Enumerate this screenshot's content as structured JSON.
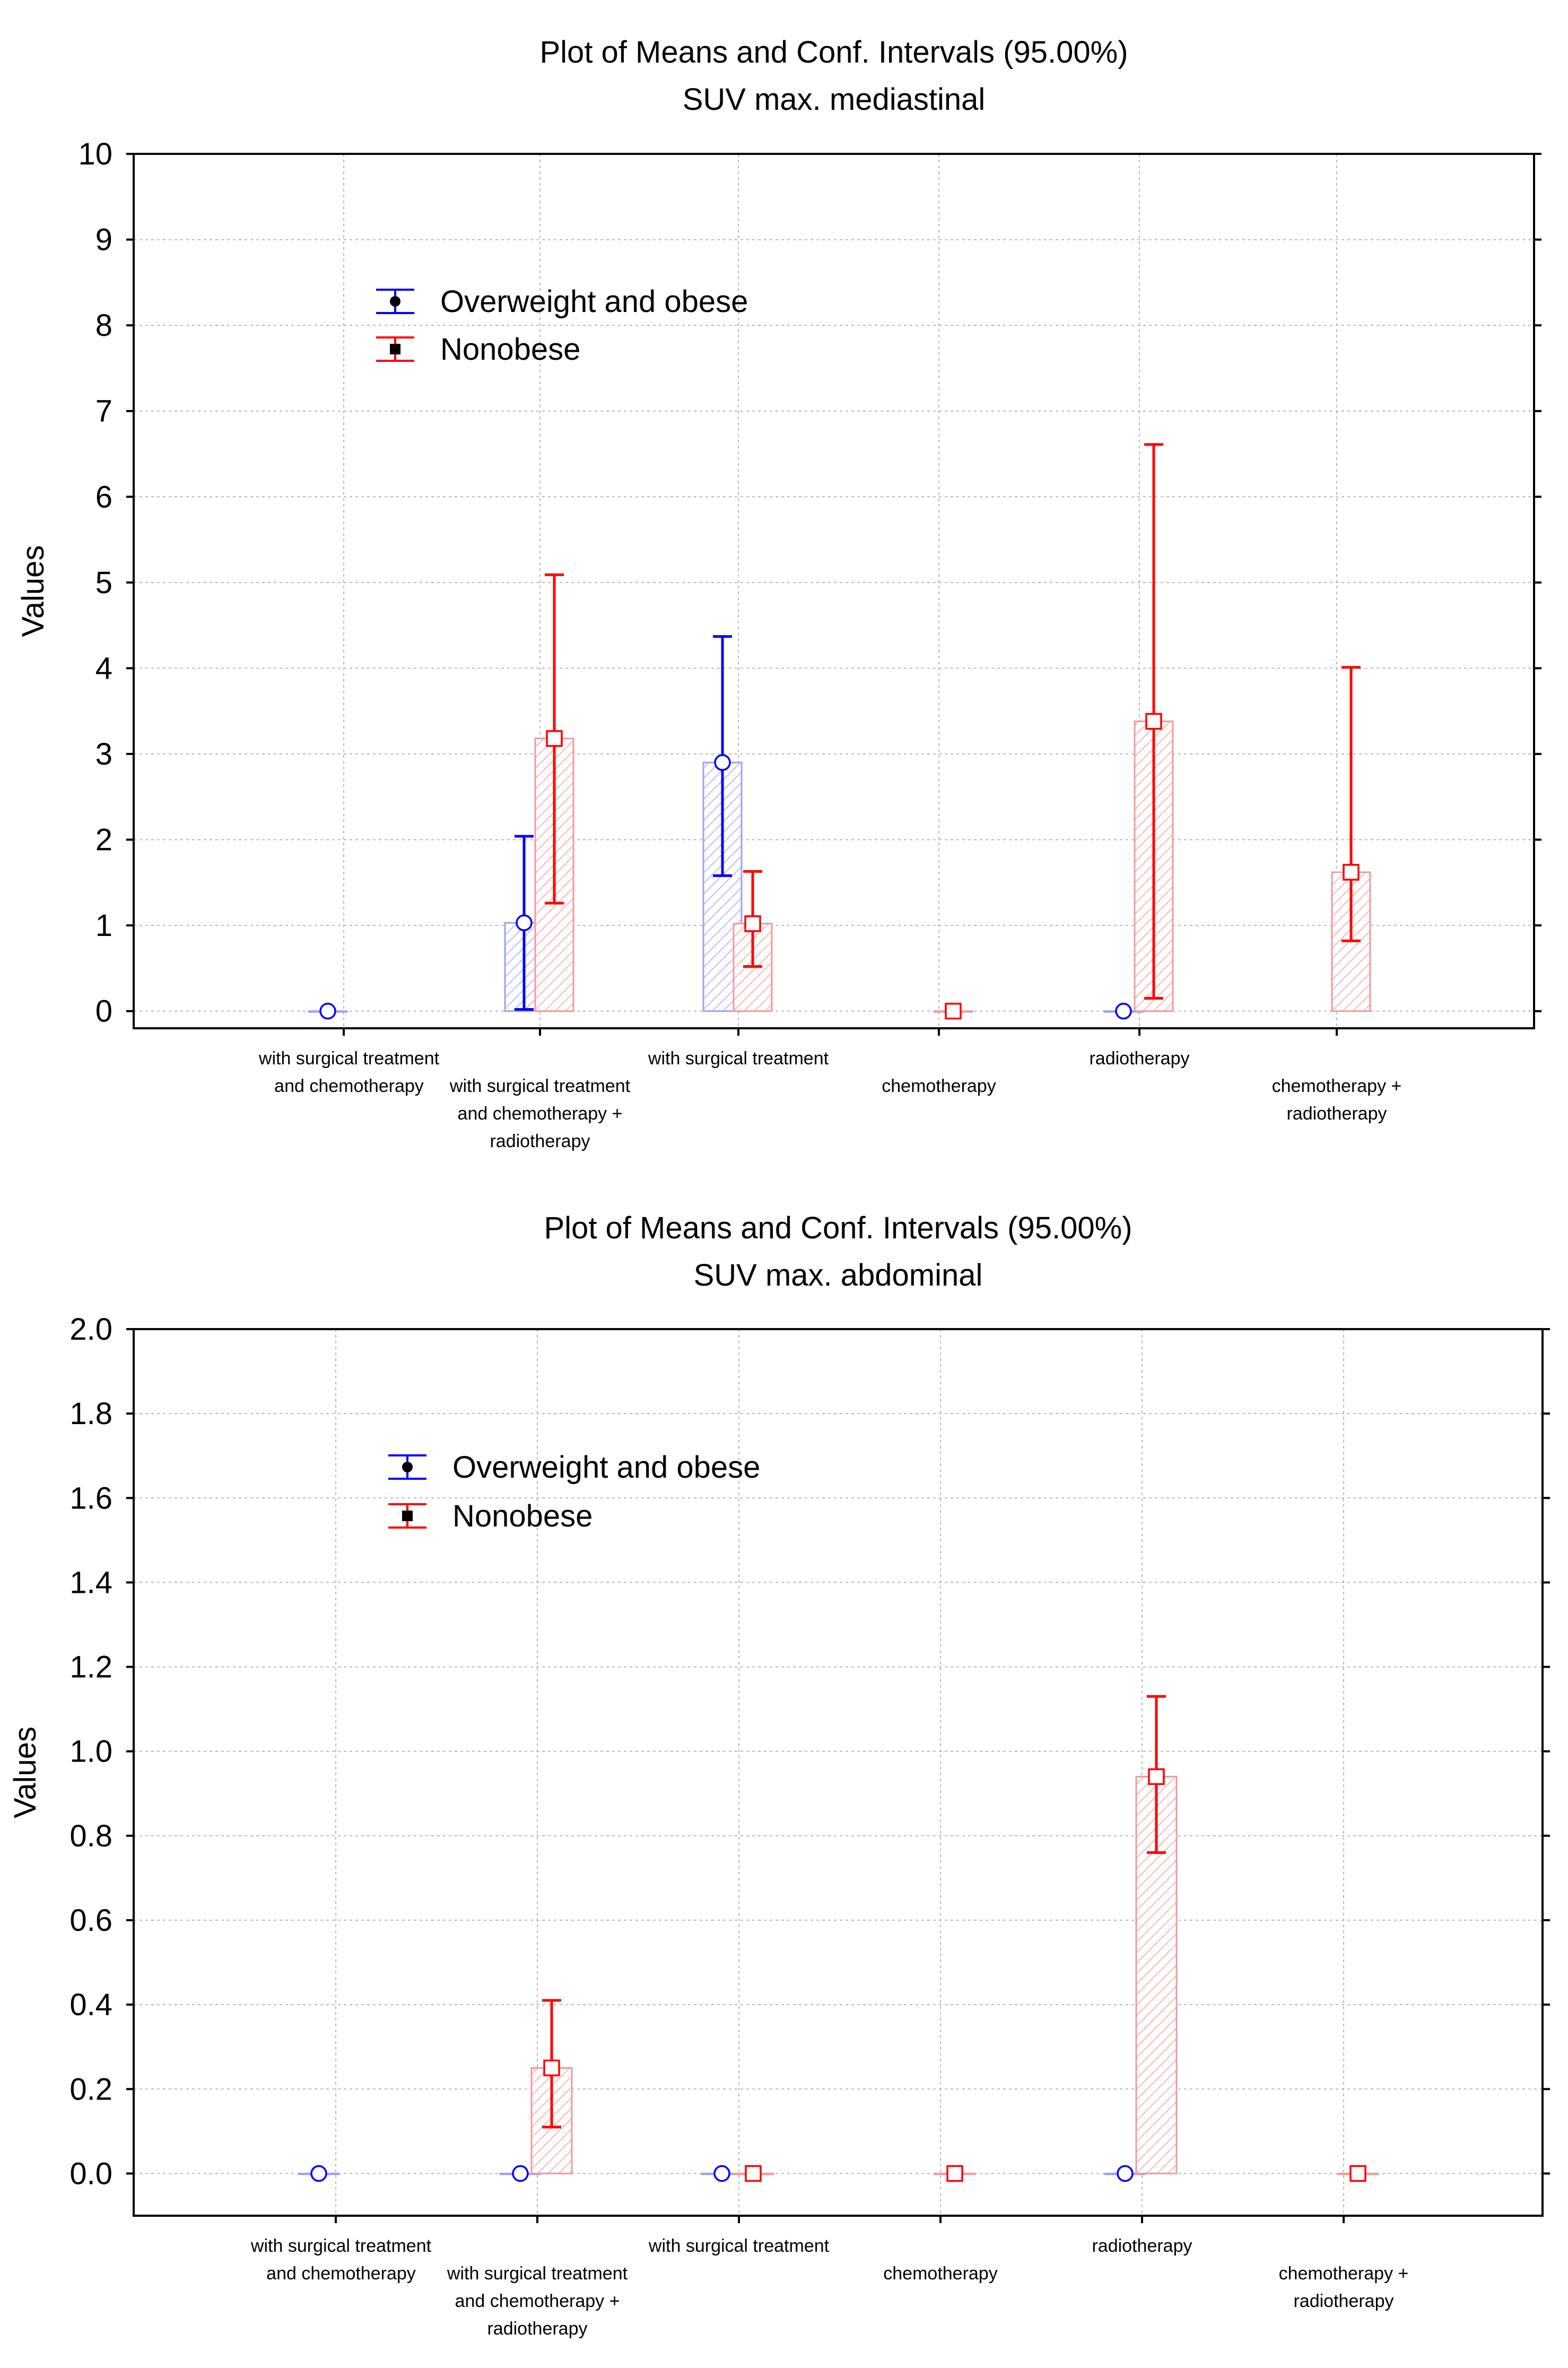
{
  "chart_data": [
    {
      "type": "bar",
      "title": "Plot of Means and Conf. Intervals (95.00%)",
      "subtitle": "SUV max. mediastinal",
      "xlabel": "",
      "ylabel": "Values",
      "ylim": [
        -0.2,
        10
      ],
      "yticks": [
        "0",
        "1",
        "2",
        "3",
        "4",
        "5",
        "6",
        "7",
        "8",
        "9",
        "10"
      ],
      "grid": true,
      "legend_position": "top-left",
      "categories": [
        [
          "with surgical treatment",
          "and chemotherapy"
        ],
        [
          "with surgical treatment",
          "and chemotherapy  +",
          "radiotherapy"
        ],
        [
          "with surgical treatment"
        ],
        [
          "chemotherapy"
        ],
        [
          "radiotherapy"
        ],
        [
          "chemotherapy  +",
          "radiotherapy"
        ]
      ],
      "series": [
        {
          "name": "Overweight and obese",
          "color": "#0000ff",
          "values": [
            0,
            1.03,
            2.9,
            null,
            0,
            null
          ],
          "ci_low": [
            null,
            0.02,
            1.58,
            null,
            null,
            null
          ],
          "ci_high": [
            null,
            2.04,
            4.37,
            null,
            null,
            null
          ]
        },
        {
          "name": "Nonobese",
          "color": "#ff0000",
          "values": [
            null,
            3.18,
            1.02,
            0,
            3.38,
            1.62
          ],
          "ci_low": [
            null,
            1.26,
            0.52,
            null,
            0.15,
            0.82
          ],
          "ci_high": [
            null,
            5.09,
            1.63,
            null,
            6.61,
            4.01
          ]
        }
      ]
    },
    {
      "type": "bar",
      "title": "Plot of Means and Conf. Intervals (95.00%)",
      "subtitle": "SUV max. abdominal",
      "xlabel": "",
      "ylabel": "Values",
      "ylim": [
        -0.1,
        2.0
      ],
      "yticks": [
        "0.0",
        "0.2",
        "0.4",
        "0.6",
        "0.8",
        "1.0",
        "1.2",
        "1.4",
        "1.6",
        "1.8",
        "2.0"
      ],
      "grid": true,
      "legend_position": "top-left",
      "categories": [
        [
          "with surgical treatment",
          "and chemotherapy"
        ],
        [
          "with surgical treatment",
          "and chemotherapy  +",
          "radiotherapy"
        ],
        [
          "with surgical treatment"
        ],
        [
          "chemotherapy"
        ],
        [
          "radiotherapy"
        ],
        [
          "chemotherapy  +",
          "radiotherapy"
        ]
      ],
      "series": [
        {
          "name": "Overweight and obese",
          "color": "#0000ff",
          "values": [
            0,
            0,
            0,
            null,
            0,
            null
          ],
          "ci_low": [
            null,
            null,
            null,
            null,
            null,
            null
          ],
          "ci_high": [
            null,
            null,
            null,
            null,
            null,
            null
          ]
        },
        {
          "name": "Nonobese",
          "color": "#ff0000",
          "values": [
            null,
            0.25,
            0,
            0,
            0.94,
            0
          ],
          "ci_low": [
            null,
            0.11,
            null,
            null,
            0.76,
            null
          ],
          "ci_high": [
            null,
            0.41,
            null,
            null,
            1.13,
            null
          ]
        }
      ]
    }
  ]
}
